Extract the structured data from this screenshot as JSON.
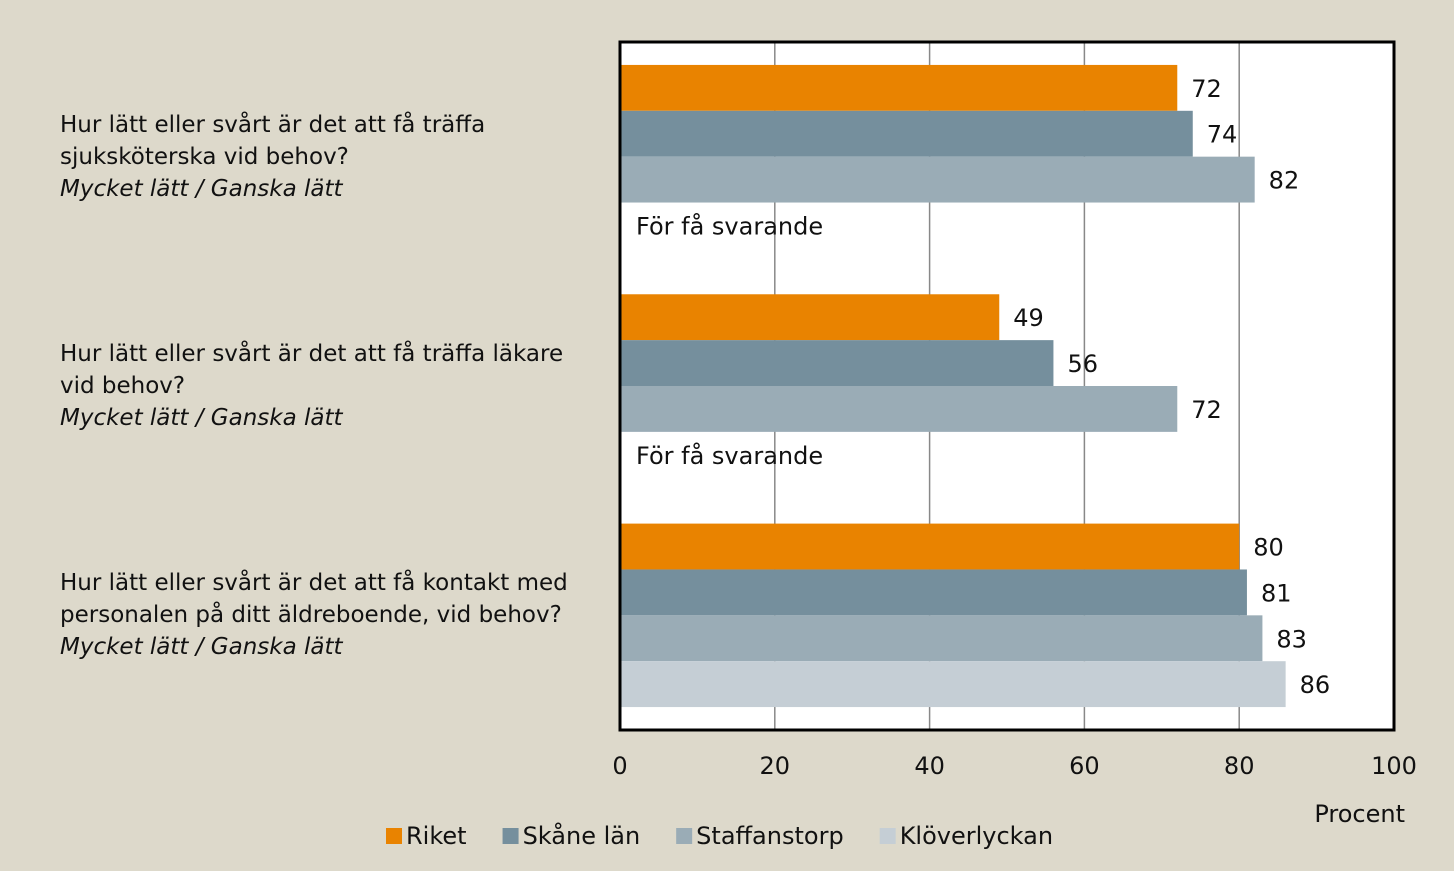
{
  "chart_data": {
    "type": "barh",
    "categories": [
      "Hur lätt eller svårt är det att få träffa sjuksköterska vid behov?",
      "Hur lätt eller svårt är det att få träffa läkare vid behov?",
      "Hur lätt eller svårt är det att få kontakt med personalen på ditt äldreboende, vid behov?"
    ],
    "category_notes": [
      "Mycket lätt / Ganska lätt",
      "Mycket lätt / Ganska lätt",
      "Mycket lätt / Ganska lätt"
    ],
    "series": [
      {
        "name": "Riket",
        "color": "#e98300",
        "values": [
          72,
          49,
          80
        ]
      },
      {
        "name": "Skåne län",
        "color": "#758f9d",
        "values": [
          74,
          56,
          81
        ]
      },
      {
        "name": "Staffanstorp",
        "color": "#9aacb6",
        "values": [
          82,
          72,
          83
        ]
      },
      {
        "name": "Klöverlyckan",
        "color": "#c5ced5",
        "values": [
          null,
          null,
          86
        ],
        "value_labels": [
          "För få svarande",
          "För få svarande",
          null
        ]
      }
    ],
    "xlim": [
      0,
      100
    ],
    "xticks": [
      0,
      20,
      40,
      60,
      80,
      100
    ],
    "xlabel": "Procent",
    "grid": true,
    "legend": "bottom"
  }
}
